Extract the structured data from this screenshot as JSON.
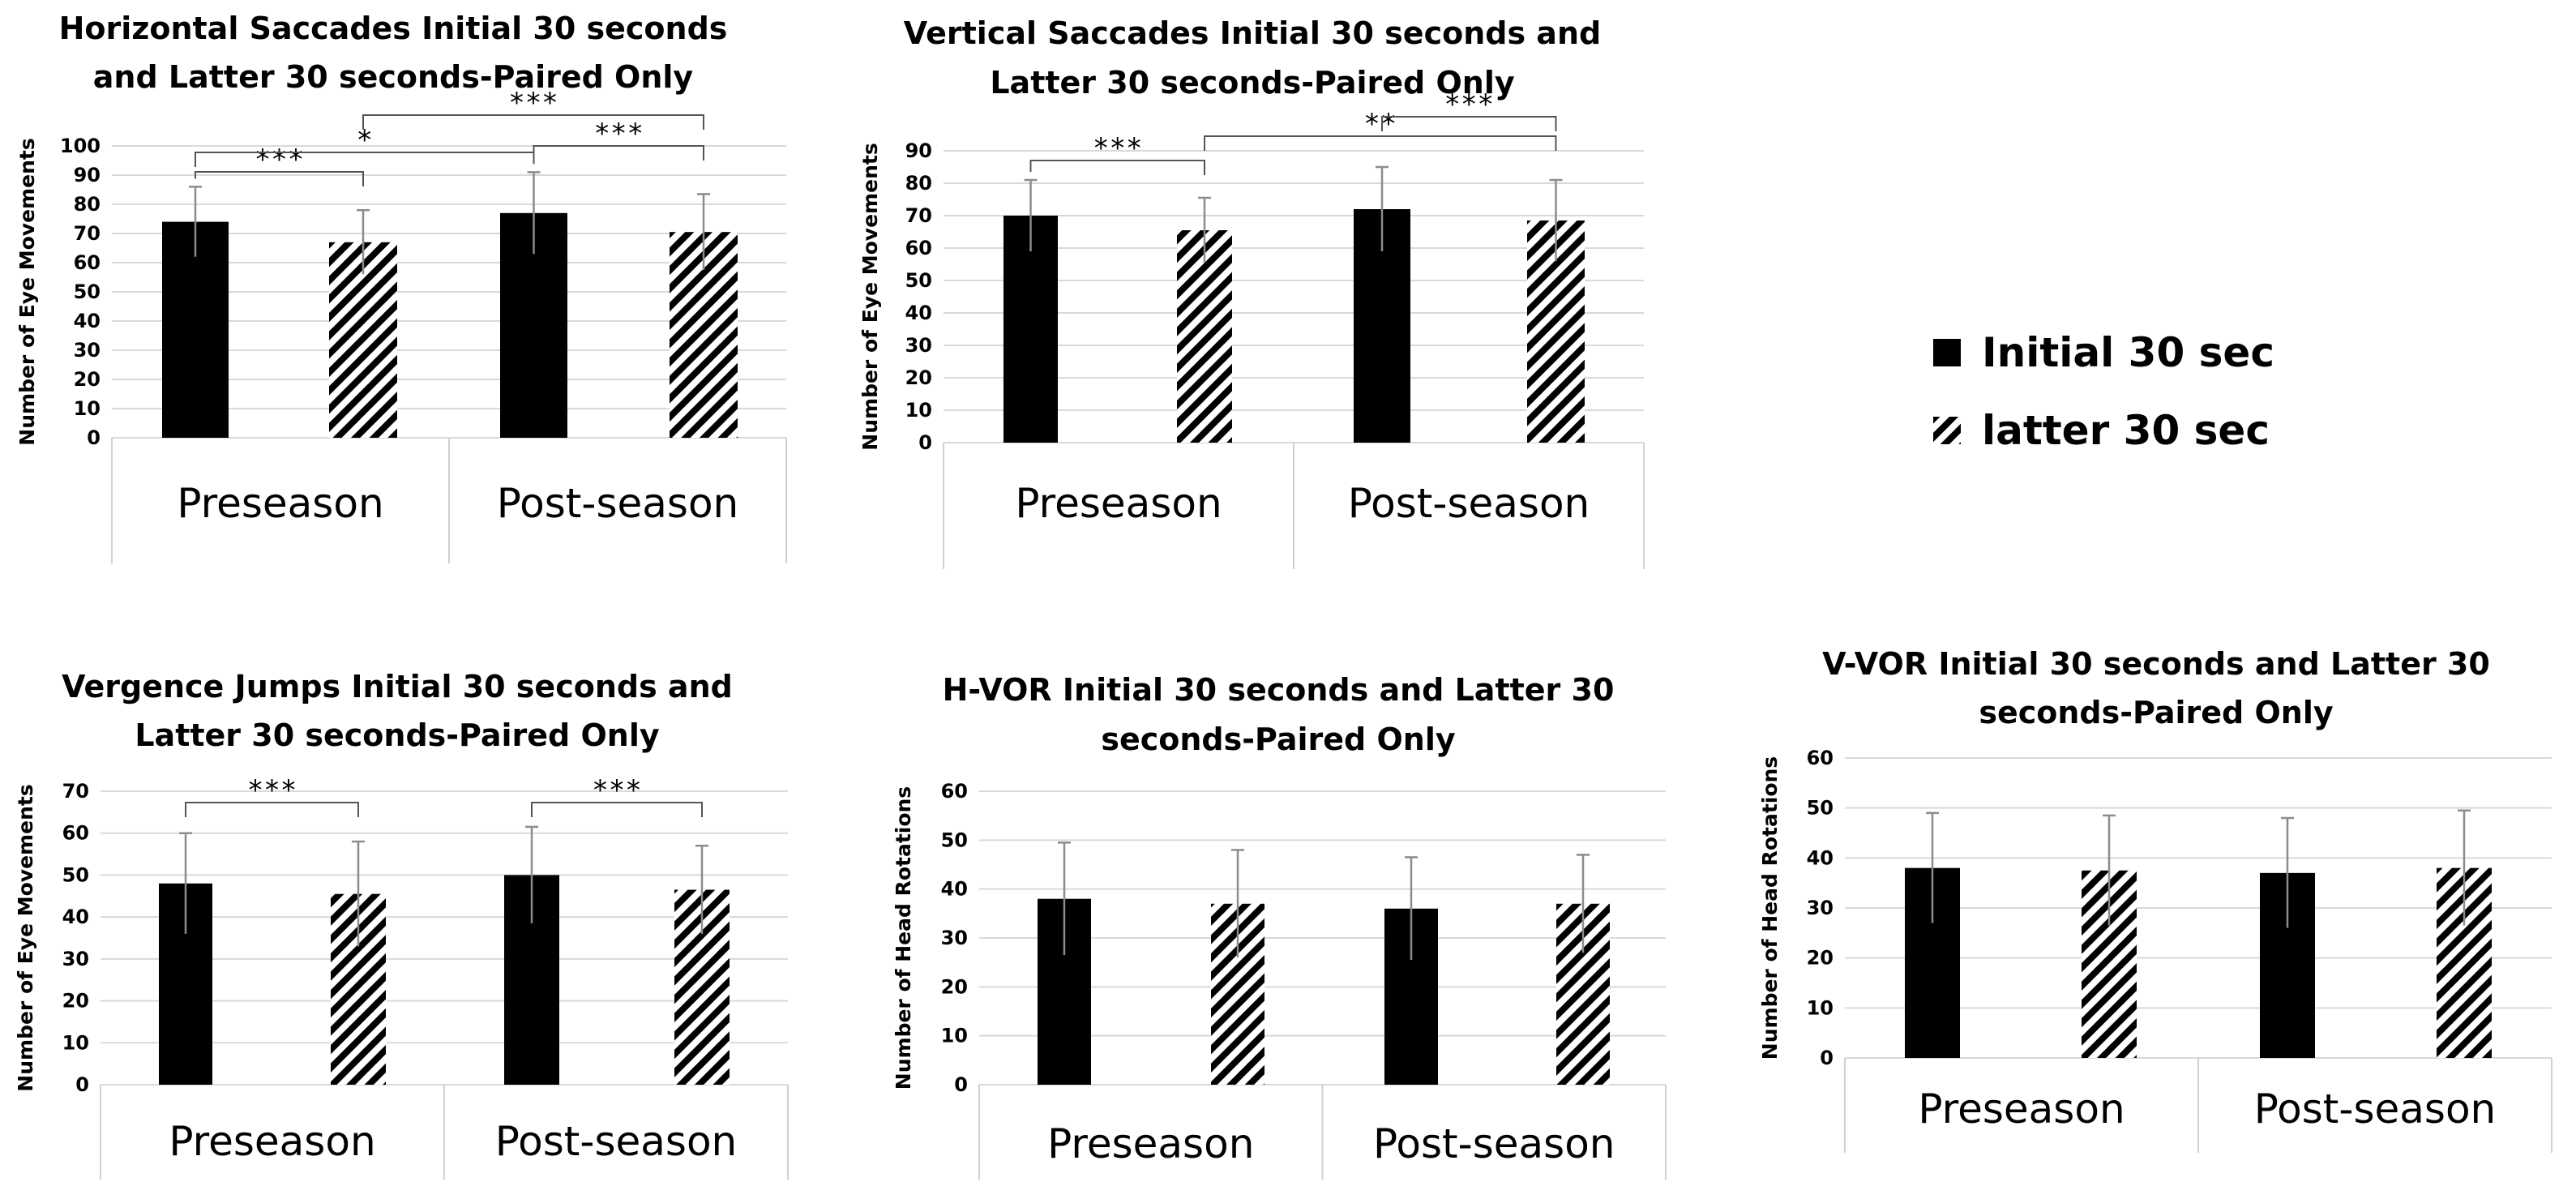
{
  "colors": {
    "initial": "#000000",
    "latter_hatch": "#000000",
    "grid": "#d9d9d9",
    "errorbar": "#8c8c8c",
    "bracket": "#555555",
    "axis_frame": "#d0d0d0"
  },
  "legend": [
    {
      "label": "Initial 30 sec",
      "pattern": "solid"
    },
    {
      "label": "latter 30 sec",
      "pattern": "hatched"
    }
  ],
  "chart_data": [
    {
      "type": "bar",
      "title_lines": [
        "Horizontal Saccades Initial 30 seconds",
        "and Latter 30 seconds-Paired Only"
      ],
      "ylabel": "Number of Eye Movements",
      "ylim": [
        0,
        100
      ],
      "yticks": [
        0,
        10,
        20,
        30,
        40,
        50,
        60,
        70,
        80,
        90,
        100
      ],
      "categories": [
        "Preseason",
        "Post-season"
      ],
      "series": [
        {
          "name": "Initial 30 sec",
          "values": [
            74,
            77
          ],
          "errors": [
            12,
            14
          ]
        },
        {
          "name": "latter 30 sec",
          "values": [
            67,
            70.5
          ],
          "errors": [
            11,
            13
          ]
        }
      ],
      "significance": [
        {
          "from": [
            0,
            0
          ],
          "to": [
            0,
            1
          ],
          "label": "***"
        },
        {
          "from": [
            0,
            0
          ],
          "to": [
            1,
            0
          ],
          "label": "*"
        },
        {
          "from": [
            0,
            1
          ],
          "to": [
            1,
            1
          ],
          "label": "***"
        },
        {
          "from": [
            1,
            0
          ],
          "to": [
            1,
            1
          ],
          "label": "***"
        }
      ]
    },
    {
      "type": "bar",
      "title_lines": [
        "Vertical Saccades Initial 30 seconds and",
        "Latter 30 seconds-Paired Only"
      ],
      "ylabel": "Number of Eye Movements",
      "ylim": [
        0,
        90
      ],
      "yticks": [
        0,
        10,
        20,
        30,
        40,
        50,
        60,
        70,
        80,
        90
      ],
      "categories": [
        "Preseason",
        "Post-season"
      ],
      "series": [
        {
          "name": "Initial 30 sec",
          "values": [
            70,
            72
          ],
          "errors": [
            11,
            13
          ]
        },
        {
          "name": "latter 30 sec",
          "values": [
            65.5,
            68.5
          ],
          "errors": [
            10,
            12.5
          ]
        }
      ],
      "significance": [
        {
          "from": [
            0,
            0
          ],
          "to": [
            0,
            1
          ],
          "label": "***"
        },
        {
          "from": [
            0,
            1
          ],
          "to": [
            1,
            1
          ],
          "label": "**"
        },
        {
          "from": [
            1,
            0
          ],
          "to": [
            1,
            1
          ],
          "label": "***"
        }
      ]
    },
    {
      "type": "bar",
      "title_lines": [
        "Vergence Jumps Initial 30 seconds and",
        "Latter 30 seconds-Paired Only"
      ],
      "ylabel": "Number of Eye Movements",
      "ylim": [
        0,
        70
      ],
      "yticks": [
        0,
        10,
        20,
        30,
        40,
        50,
        60,
        70
      ],
      "categories": [
        "Preseason",
        "Post-season"
      ],
      "series": [
        {
          "name": "Initial 30 sec",
          "values": [
            48,
            50
          ],
          "errors": [
            12,
            11.5
          ]
        },
        {
          "name": "latter 30 sec",
          "values": [
            45.5,
            46.5
          ],
          "errors": [
            12.5,
            10.5
          ]
        }
      ],
      "significance": [
        {
          "from": [
            0,
            0
          ],
          "to": [
            0,
            1
          ],
          "label": "***"
        },
        {
          "from": [
            1,
            0
          ],
          "to": [
            1,
            1
          ],
          "label": "***"
        }
      ]
    },
    {
      "type": "bar",
      "title_lines": [
        "H-VOR Initial 30 seconds and Latter 30",
        "seconds-Paired Only"
      ],
      "ylabel": "Number of Head Rotations",
      "ylim": [
        0,
        60
      ],
      "yticks": [
        0,
        10,
        20,
        30,
        40,
        50,
        60
      ],
      "categories": [
        "Preseason",
        "Post-season"
      ],
      "series": [
        {
          "name": "Initial 30 sec",
          "values": [
            38,
            36
          ],
          "errors": [
            11.5,
            10.5
          ]
        },
        {
          "name": "latter 30 sec",
          "values": [
            37,
            37
          ],
          "errors": [
            11,
            10
          ]
        }
      ],
      "significance": []
    },
    {
      "type": "bar",
      "title_lines": [
        "V-VOR Initial 30 seconds and Latter 30",
        "seconds-Paired Only"
      ],
      "ylabel": "Number of Head Rotations",
      "ylim": [
        0,
        60
      ],
      "yticks": [
        0,
        10,
        20,
        30,
        40,
        50,
        60
      ],
      "categories": [
        "Preseason",
        "Post-season"
      ],
      "series": [
        {
          "name": "Initial 30 sec",
          "values": [
            38,
            37
          ],
          "errors": [
            11,
            11
          ]
        },
        {
          "name": "latter 30 sec",
          "values": [
            37.5,
            38
          ],
          "errors": [
            11,
            11.5
          ]
        }
      ],
      "significance": []
    }
  ]
}
